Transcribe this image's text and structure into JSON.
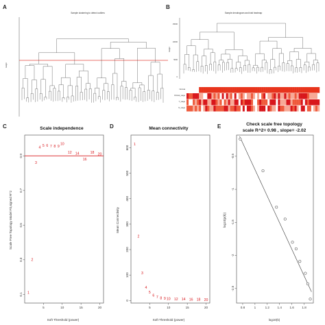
{
  "panels": {
    "A": {
      "label": "A",
      "title": "Sample clustering to detect outliers",
      "ylabel": "Height"
    },
    "B": {
      "label": "B",
      "title": "Sample dendrogram and trait heatmap",
      "ylabel": "Height",
      "row_labels": [
        "Normal",
        "Clinical_stage",
        "T_stage",
        "N_stage"
      ],
      "y_ticks": [
        "15000",
        "10000",
        "5000",
        "0"
      ]
    }
  },
  "chart_data": [
    {
      "panel": "C",
      "type": "scatter",
      "title": "Scale independence",
      "xlabel": "Soft Threshold (power)",
      "ylabel": "Scale Free Topology Model Fit,signed R^2",
      "xlim": [
        0,
        21
      ],
      "ylim": [
        0.05,
        1.02
      ],
      "x_ticks": [
        5,
        10,
        15,
        20
      ],
      "y_ticks": [
        0.1,
        0.3,
        0.5,
        0.7,
        0.9
      ],
      "marker": "text-labels",
      "hline": 0.9,
      "points": [
        {
          "x": 1,
          "y": 0.11,
          "label": "1"
        },
        {
          "x": 2,
          "y": 0.3,
          "label": "2"
        },
        {
          "x": 3,
          "y": 0.86,
          "label": "3"
        },
        {
          "x": 4,
          "y": 0.95,
          "label": "4"
        },
        {
          "x": 5,
          "y": 0.96,
          "label": "5"
        },
        {
          "x": 6,
          "y": 0.96,
          "label": "6"
        },
        {
          "x": 7,
          "y": 0.955,
          "label": "7"
        },
        {
          "x": 8,
          "y": 0.955,
          "label": "8"
        },
        {
          "x": 9,
          "y": 0.955,
          "label": "9"
        },
        {
          "x": 10,
          "y": 0.97,
          "label": "10"
        },
        {
          "x": 12,
          "y": 0.92,
          "label": "12"
        },
        {
          "x": 14,
          "y": 0.915,
          "label": "14"
        },
        {
          "x": 16,
          "y": 0.88,
          "label": "16"
        },
        {
          "x": 18,
          "y": 0.92,
          "label": "18"
        },
        {
          "x": 20,
          "y": 0.91,
          "label": "20"
        }
      ]
    },
    {
      "panel": "D",
      "type": "scatter",
      "title": "Mean connectivity",
      "xlabel": "Soft Threshold (power)",
      "ylabel": "Mean Connectivity",
      "xlim": [
        0,
        21
      ],
      "ylim": [
        -10,
        650
      ],
      "x_ticks": [
        5,
        10,
        15,
        20
      ],
      "y_ticks": [
        0,
        100,
        200,
        300,
        400,
        500,
        600
      ],
      "marker": "text-labels",
      "points": [
        {
          "x": 1,
          "y": 615,
          "label": "1"
        },
        {
          "x": 2,
          "y": 252,
          "label": "2"
        },
        {
          "x": 3,
          "y": 108,
          "label": "3"
        },
        {
          "x": 4,
          "y": 52,
          "label": "4"
        },
        {
          "x": 5,
          "y": 32,
          "label": "5"
        },
        {
          "x": 6,
          "y": 21,
          "label": "6"
        },
        {
          "x": 7,
          "y": 14,
          "label": "7"
        },
        {
          "x": 8,
          "y": 10,
          "label": "8"
        },
        {
          "x": 9,
          "y": 8,
          "label": "9"
        },
        {
          "x": 10,
          "y": 7,
          "label": "10"
        },
        {
          "x": 12,
          "y": 6,
          "label": "12"
        },
        {
          "x": 14,
          "y": 5,
          "label": "14"
        },
        {
          "x": 16,
          "y": 4,
          "label": "16"
        },
        {
          "x": 18,
          "y": 4,
          "label": "18"
        },
        {
          "x": 20,
          "y": 3,
          "label": "20"
        }
      ]
    },
    {
      "panel": "E",
      "type": "scatter",
      "title": "Check scale free topology",
      "subtitle": "scale R^2= 0.98 , slope= -2.02",
      "xlabel": "log10(k)",
      "ylabel": "log10(p(k))",
      "xlim": [
        0.7,
        1.95
      ],
      "ylim": [
        -2.72,
        -0.18
      ],
      "x_ticks": [
        0.8,
        1.0,
        1.2,
        1.4,
        1.6,
        1.8
      ],
      "y_ticks": [
        -2.5,
        -2.0,
        -1.5,
        -1.0,
        -0.5
      ],
      "marker": "open-circle",
      "fit_line": {
        "x": [
          0.75,
          1.92
        ],
        "y": [
          -0.2,
          -2.55
        ]
      },
      "points": [
        {
          "x": 0.76,
          "y": -0.24
        },
        {
          "x": 1.13,
          "y": -0.72
        },
        {
          "x": 1.35,
          "y": -1.27
        },
        {
          "x": 1.49,
          "y": -1.45
        },
        {
          "x": 1.61,
          "y": -1.8
        },
        {
          "x": 1.67,
          "y": -1.9
        },
        {
          "x": 1.73,
          "y": -2.09
        },
        {
          "x": 1.82,
          "y": -2.27
        },
        {
          "x": 1.86,
          "y": -2.43
        },
        {
          "x": 1.9,
          "y": -2.66
        }
      ]
    }
  ]
}
